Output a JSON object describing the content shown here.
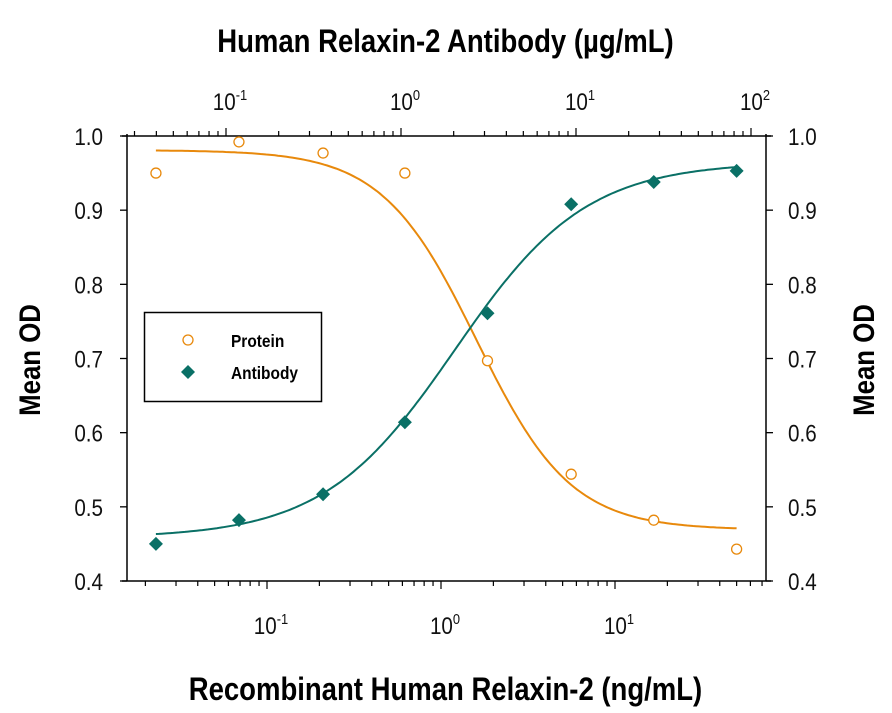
{
  "chart_data": {
    "type": "scatter",
    "title": "Human Relaxin-2 Antibody (µg/mL)",
    "xlabel": "Recombinant Human Relaxin-2 (ng/mL)",
    "x2label": "Human Relaxin-2 Antibody (µg/mL)",
    "ylabel": "Mean OD",
    "y2label": "Mean OD",
    "xscale": "log",
    "xlim": [
      0.0158,
      73
    ],
    "x2lim": [
      0.0275,
      125
    ],
    "ylim": [
      0.4,
      1.0
    ],
    "x_ticks": [
      {
        "base": "10",
        "exp": "-1",
        "value": 0.1
      },
      {
        "base": "10",
        "exp": "0",
        "value": 1
      },
      {
        "base": "10",
        "exp": "1",
        "value": 10
      }
    ],
    "x2_ticks": [
      {
        "base": "10",
        "exp": "-1",
        "value": 0.1
      },
      {
        "base": "10",
        "exp": "0",
        "value": 1
      },
      {
        "base": "10",
        "exp": "1",
        "value": 10
      },
      {
        "base": "10",
        "exp": "2",
        "value": 100
      }
    ],
    "y_ticks": [
      "0.4",
      "0.5",
      "0.6",
      "0.7",
      "0.8",
      "0.9",
      "1.0"
    ],
    "grid": false,
    "legend_position": "left-middle",
    "series": [
      {
        "name": "Protein",
        "marker": "open-circle",
        "color": "#e8890c",
        "x": [
          0.023,
          0.069,
          0.21,
          0.62,
          1.85,
          5.6,
          16.7,
          50
        ],
        "values": [
          0.95,
          0.992,
          0.977,
          0.95,
          0.697,
          0.544,
          0.482,
          0.443
        ],
        "fit": {
          "type": "4PL",
          "top": 0.981,
          "bottom": 0.469,
          "ec50": 1.6,
          "slope": -1.6
        }
      },
      {
        "name": "Antibody",
        "marker": "filled-diamond",
        "color": "#0a7066",
        "x": [
          0.023,
          0.069,
          0.21,
          0.62,
          1.85,
          5.6,
          16.7,
          50
        ],
        "values": [
          0.45,
          0.482,
          0.517,
          0.614,
          0.761,
          0.908,
          0.938,
          0.953
        ],
        "fit": {
          "type": "4PL",
          "top": 0.965,
          "bottom": 0.458,
          "ec50": 1.2,
          "slope": 1.15
        }
      }
    ]
  },
  "labels": {
    "top_title": "Human Relaxin-2 Antibody (µg/mL)",
    "bottom_title": "Recombinant Human Relaxin-2 (ng/mL)",
    "left_axis": "Mean OD",
    "right_axis": "Mean OD"
  },
  "legend": {
    "items": [
      {
        "label": "Protein"
      },
      {
        "label": "Antibody"
      }
    ]
  },
  "colors": {
    "protein": "#e8890c",
    "antibody": "#0a7066",
    "axis": "#000000"
  }
}
